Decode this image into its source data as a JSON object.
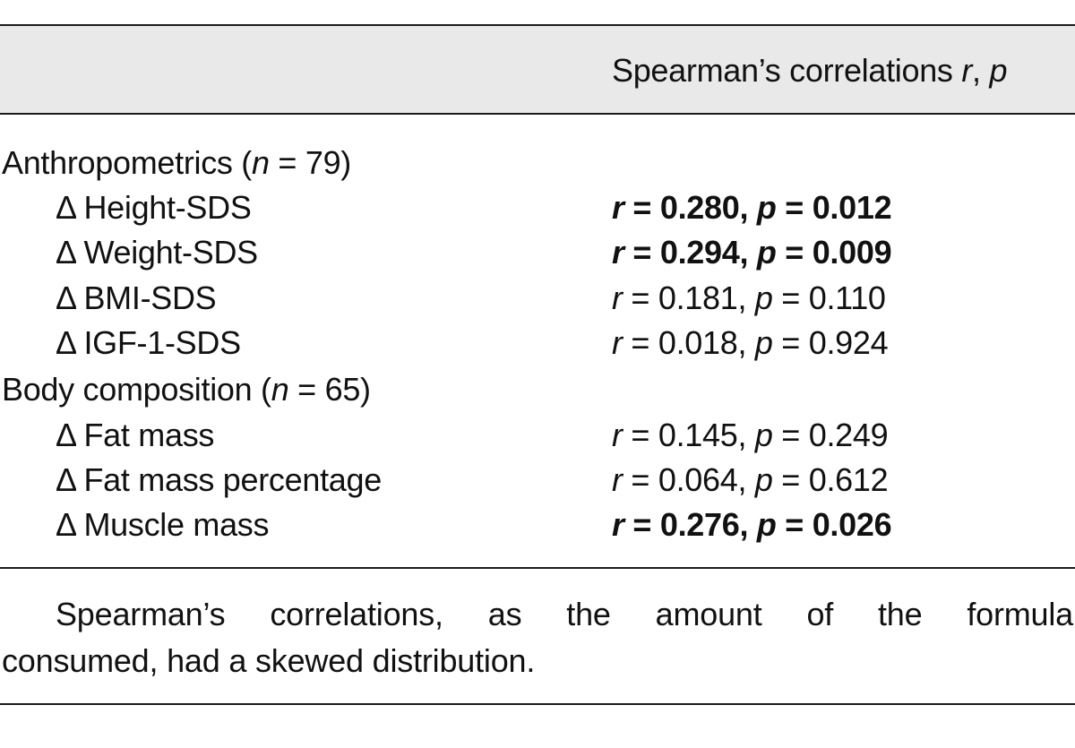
{
  "header": {
    "column_label_prefix": "Spearman’s correlations ",
    "column_label_r": "r",
    "column_label_sep": ", ",
    "column_label_p": "p"
  },
  "rows": [
    {
      "kind": "group",
      "label": "Anthropometrics (",
      "n_symbol": "n",
      "n_text": " = 79)",
      "value": ""
    },
    {
      "kind": "item",
      "label": "Δ Height-SDS",
      "r": "0.280",
      "p": "0.012",
      "bold": true
    },
    {
      "kind": "item",
      "label": "Δ Weight-SDS",
      "r": "0.294",
      "p": "0.009",
      "bold": true
    },
    {
      "kind": "item",
      "label": "Δ BMI-SDS",
      "r": "0.181",
      "p": "0.110",
      "bold": false
    },
    {
      "kind": "item",
      "label": "Δ IGF-1-SDS",
      "r": "0.018",
      "p": "0.924",
      "bold": false
    },
    {
      "kind": "group",
      "label": "Body composition (",
      "n_symbol": "n",
      "n_text": " = 65)",
      "value": ""
    },
    {
      "kind": "item",
      "label": "Δ Fat mass",
      "r": "0.145",
      "p": "0.249",
      "bold": false
    },
    {
      "kind": "item",
      "label": "Δ Fat mass percentage",
      "r": "0.064",
      "p": "0.612",
      "bold": false
    },
    {
      "kind": "item",
      "label": "Δ Muscle mass",
      "r": "0.276",
      "p": "0.026",
      "bold": true
    }
  ],
  "stat_labels": {
    "r_symbol": "r",
    "p_symbol": "p",
    "equals": " = ",
    "separator": ", "
  },
  "footnote": {
    "line1": "Spearman’s correlations, as the amount of the formula",
    "line2": "consumed, had a skewed distribution."
  }
}
